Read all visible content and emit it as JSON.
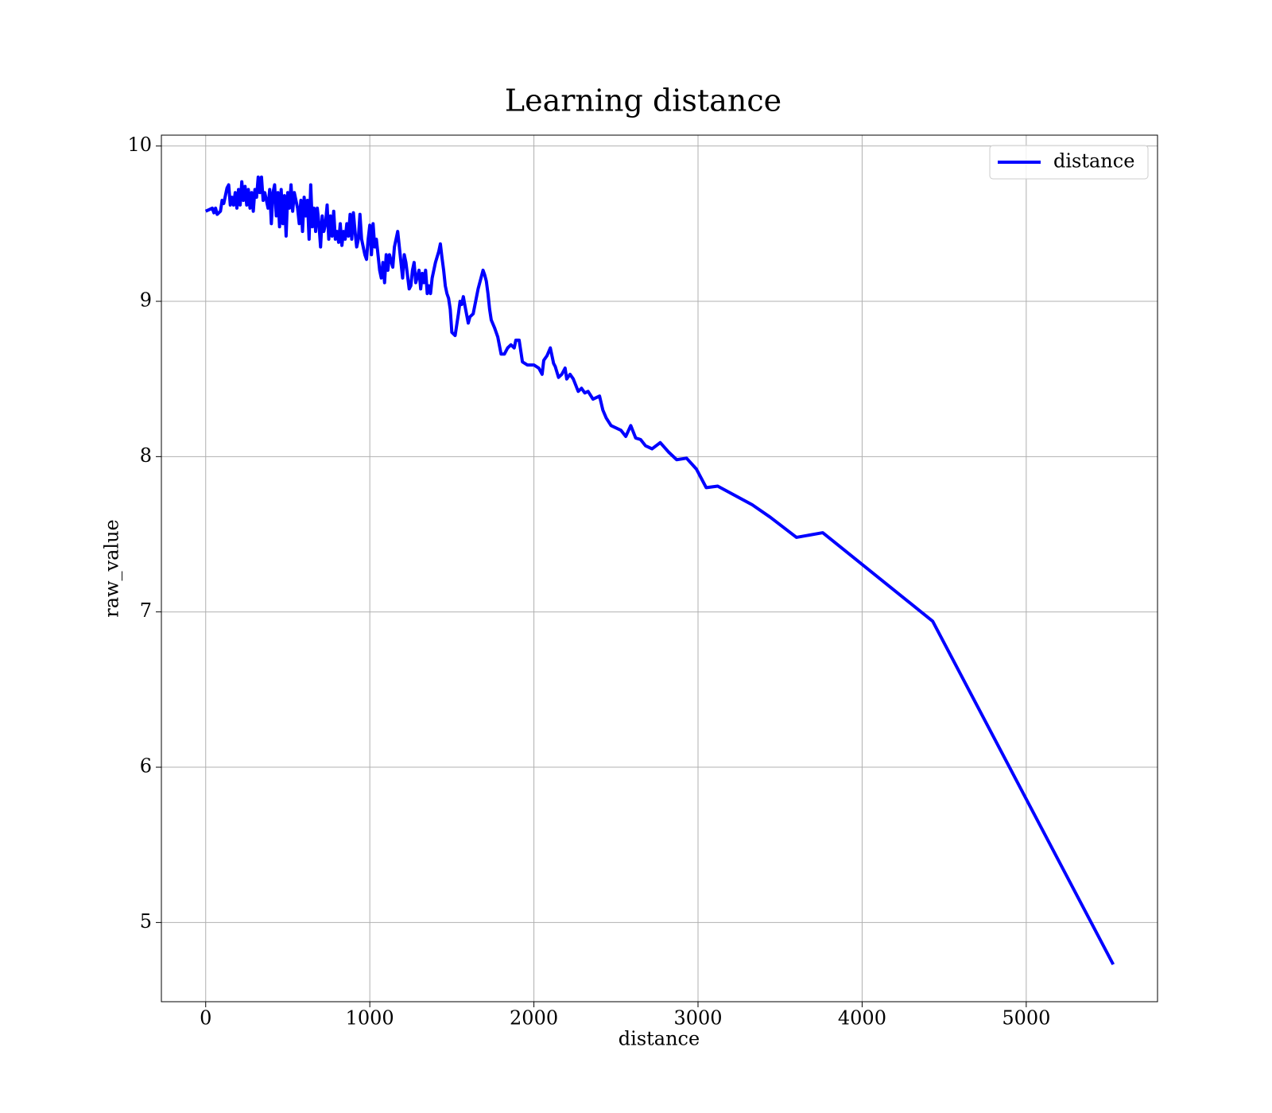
{
  "chart_data": {
    "type": "line",
    "title": "Learning distance",
    "x_label": "distance",
    "y_label": "raw_value",
    "xlim": [
      -270,
      5800
    ],
    "ylim": [
      4.49,
      10.07
    ],
    "xticks": [
      0,
      1000,
      2000,
      3000,
      4000,
      5000
    ],
    "yticks": [
      5,
      6,
      7,
      8,
      9,
      10
    ],
    "grid": true,
    "legend": "upper right",
    "x": [
      0,
      20,
      40,
      50,
      60,
      70,
      90,
      100,
      110,
      120,
      130,
      140,
      150,
      160,
      170,
      180,
      190,
      200,
      210,
      220,
      230,
      240,
      250,
      260,
      270,
      280,
      290,
      300,
      310,
      320,
      330,
      340,
      350,
      360,
      380,
      390,
      400,
      410,
      420,
      430,
      440,
      450,
      460,
      470,
      480,
      490,
      500,
      510,
      520,
      530,
      540,
      560,
      570,
      580,
      590,
      600,
      610,
      620,
      630,
      640,
      650,
      660,
      670,
      680,
      690,
      700,
      710,
      720,
      730,
      740,
      750,
      760,
      770,
      780,
      790,
      800,
      810,
      820,
      830,
      840,
      850,
      860,
      870,
      880,
      890,
      900,
      910,
      920,
      930,
      940,
      950,
      960,
      970,
      980,
      990,
      1000,
      1010,
      1020,
      1030,
      1040,
      1060,
      1070,
      1080,
      1090,
      1100,
      1110,
      1120,
      1140,
      1150,
      1160,
      1170,
      1180,
      1190,
      1200,
      1210,
      1220,
      1240,
      1250,
      1260,
      1270,
      1280,
      1300,
      1310,
      1320,
      1330,
      1340,
      1350,
      1360,
      1370,
      1380,
      1400,
      1420,
      1430,
      1440,
      1450,
      1460,
      1470,
      1480,
      1490,
      1500,
      1520,
      1540,
      1550,
      1560,
      1570,
      1580,
      1600,
      1610,
      1630,
      1660,
      1690,
      1700,
      1710,
      1720,
      1730,
      1740,
      1760,
      1780,
      1800,
      1820,
      1840,
      1860,
      1880,
      1890,
      1910,
      1930,
      1960,
      2000,
      2030,
      2050,
      2060,
      2080,
      2100,
      2120,
      2130,
      2150,
      2170,
      2190,
      2200,
      2220,
      2240,
      2270,
      2290,
      2310,
      2330,
      2360,
      2400,
      2420,
      2440,
      2470,
      2530,
      2560,
      2590,
      2620,
      2650,
      2680,
      2720,
      2770,
      2820,
      2870,
      2930,
      2990,
      3050,
      3120,
      3330,
      3440,
      3600,
      3760,
      4430,
      5530
    ],
    "series": [
      {
        "name": "distance",
        "color": "#0000ff",
        "values": [
          9.58,
          9.59,
          9.6,
          9.57,
          9.6,
          9.56,
          9.58,
          9.65,
          9.63,
          9.68,
          9.73,
          9.75,
          9.62,
          9.67,
          9.62,
          9.7,
          9.6,
          9.72,
          9.62,
          9.77,
          9.65,
          9.74,
          9.62,
          9.72,
          9.6,
          9.7,
          9.58,
          9.72,
          9.67,
          9.8,
          9.7,
          9.8,
          9.65,
          9.7,
          9.6,
          9.72,
          9.5,
          9.7,
          9.75,
          9.55,
          9.7,
          9.48,
          9.72,
          9.5,
          9.68,
          9.42,
          9.7,
          9.6,
          9.75,
          9.58,
          9.7,
          9.6,
          9.5,
          9.65,
          9.45,
          9.67,
          9.55,
          9.65,
          9.4,
          9.75,
          9.48,
          9.6,
          9.45,
          9.6,
          9.5,
          9.35,
          9.55,
          9.45,
          9.5,
          9.62,
          9.4,
          9.55,
          9.42,
          9.58,
          9.4,
          9.45,
          9.38,
          9.5,
          9.36,
          9.45,
          9.4,
          9.5,
          9.42,
          9.56,
          9.4,
          9.57,
          9.45,
          9.35,
          9.4,
          9.56,
          9.4,
          9.35,
          9.3,
          9.27,
          9.4,
          9.49,
          9.3,
          9.5,
          9.35,
          9.4,
          9.2,
          9.15,
          9.25,
          9.12,
          9.3,
          9.2,
          9.3,
          9.22,
          9.35,
          9.4,
          9.45,
          9.35,
          9.25,
          9.15,
          9.3,
          9.25,
          9.08,
          9.1,
          9.2,
          9.25,
          9.12,
          9.2,
          9.08,
          9.18,
          9.12,
          9.2,
          9.05,
          9.1,
          9.05,
          9.15,
          9.25,
          9.32,
          9.37,
          9.28,
          9.2,
          9.1,
          9.05,
          9.02,
          8.95,
          8.8,
          8.78,
          8.92,
          9.0,
          8.98,
          9.03,
          8.97,
          8.86,
          8.9,
          8.92,
          9.08,
          9.2,
          9.17,
          9.13,
          9.05,
          8.95,
          8.88,
          8.83,
          8.77,
          8.66,
          8.66,
          8.7,
          8.72,
          8.7,
          8.75,
          8.75,
          8.61,
          8.59,
          8.59,
          8.57,
          8.53,
          8.62,
          8.65,
          8.7,
          8.6,
          8.58,
          8.51,
          8.53,
          8.57,
          8.5,
          8.53,
          8.5,
          8.42,
          8.44,
          8.41,
          8.42,
          8.37,
          8.39,
          8.3,
          8.25,
          8.2,
          8.17,
          8.13,
          8.2,
          8.12,
          8.11,
          8.07,
          8.05,
          8.09,
          8.03,
          7.98,
          7.99,
          7.92,
          7.8,
          7.81,
          7.69,
          7.61,
          7.48,
          7.51,
          6.94,
          4.73
        ]
      }
    ]
  }
}
